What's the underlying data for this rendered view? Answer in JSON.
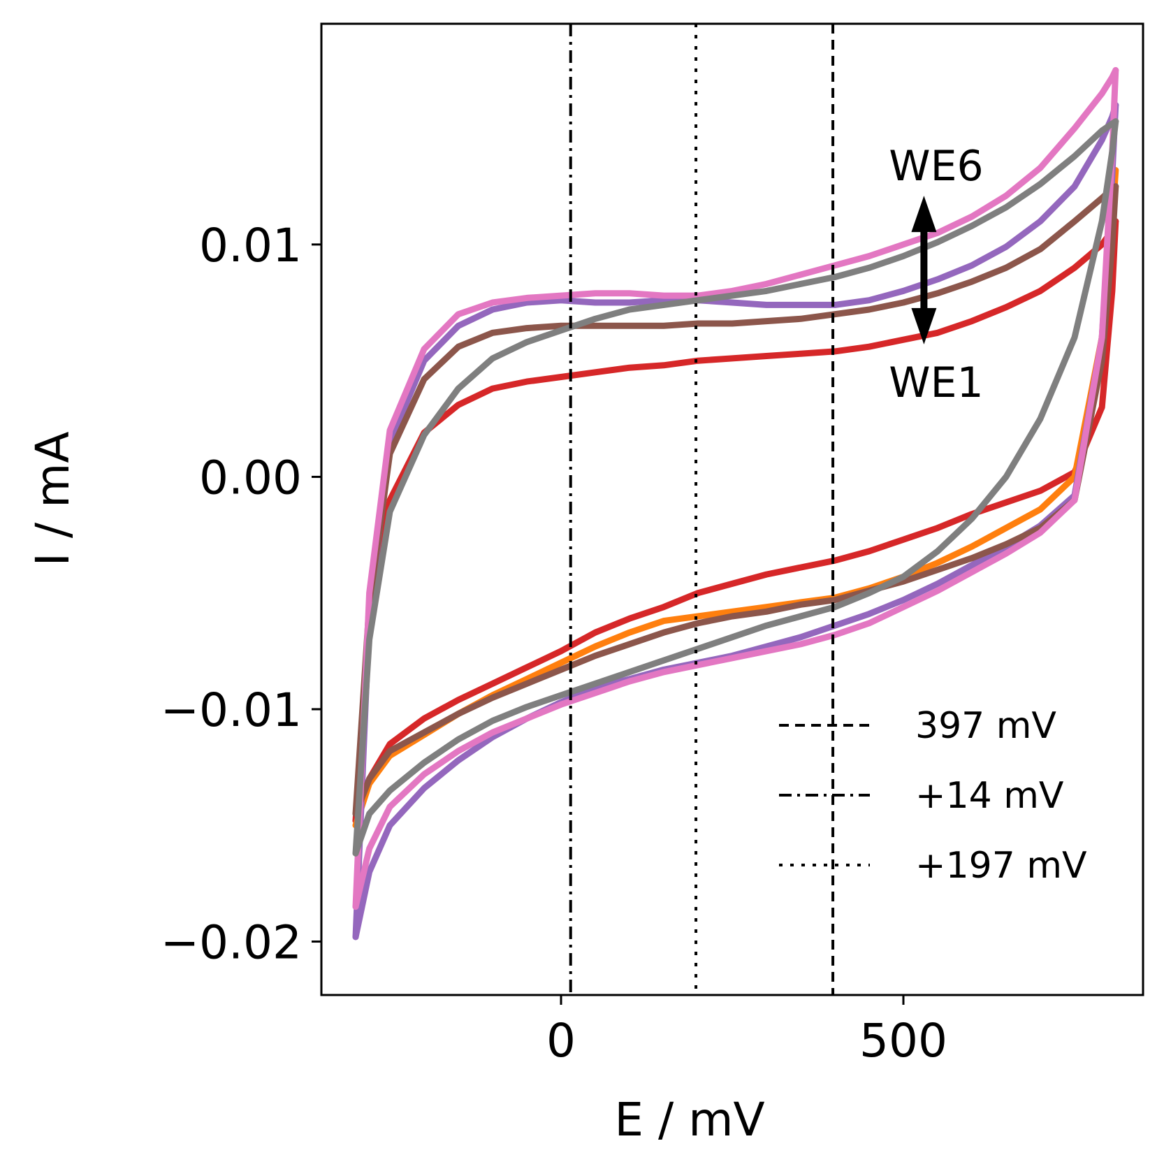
{
  "chart_data": {
    "type": "line",
    "title": "",
    "xlabel": "E / mV",
    "ylabel": "I / mA",
    "xlim": [
      -350,
      850
    ],
    "ylim": [
      -0.0223,
      0.0195
    ],
    "x_ticks": [
      0,
      500
    ],
    "x_tick_labels": [
      "0",
      "500"
    ],
    "y_ticks": [
      -0.02,
      -0.01,
      0.0,
      0.01
    ],
    "y_tick_labels": [
      "−0.02",
      "−0.01",
      "0.00",
      "0.01"
    ],
    "grid": false,
    "legend_position": "lower-right",
    "reference_lines": [
      {
        "x": 397,
        "style": "dashed",
        "label": "397 mV"
      },
      {
        "x": 14,
        "style": "dashdot",
        "label": "+14 mV"
      },
      {
        "x": 197,
        "style": "dotted",
        "label": "+197 mV"
      }
    ],
    "annotations": {
      "top": "WE6",
      "bottom": "WE1",
      "arrow_x": 530,
      "arrow_y": [
        0.0057,
        0.0121
      ]
    },
    "x": [
      -300,
      -280,
      -250,
      -200,
      -150,
      -100,
      -50,
      0,
      50,
      100,
      150,
      200,
      250,
      300,
      350,
      400,
      450,
      500,
      550,
      600,
      650,
      700,
      750,
      790,
      805,
      810
    ],
    "series": [
      {
        "color": "#d62728",
        "forward": [
          -0.0148,
          -0.013,
          -0.0115,
          -0.0104,
          -0.0096,
          -0.0089,
          -0.0082,
          -0.0075,
          -0.0067,
          -0.0061,
          -0.0056,
          -0.005,
          -0.0046,
          -0.0042,
          -0.0039,
          -0.0036,
          -0.0032,
          -0.0027,
          -0.0022,
          -0.0016,
          -0.0011,
          -0.0006,
          0.0002,
          0.003,
          0.008,
          0.011
        ],
        "reverse": [
          -0.0148,
          -0.006,
          -0.001,
          0.0019,
          0.0031,
          0.0038,
          0.0041,
          0.0043,
          0.0045,
          0.0047,
          0.0048,
          0.005,
          0.0051,
          0.0052,
          0.0053,
          0.0054,
          0.0056,
          0.0059,
          0.0062,
          0.0067,
          0.0073,
          0.008,
          0.009,
          0.01,
          0.0106,
          0.011
        ]
      },
      {
        "color": "#ff7f0e",
        "forward": [
          -0.015,
          -0.0132,
          -0.012,
          -0.0111,
          -0.0102,
          -0.0094,
          -0.0087,
          -0.008,
          -0.0073,
          -0.0067,
          -0.0062,
          -0.006,
          -0.0058,
          -0.0056,
          -0.0054,
          -0.0052,
          -0.0048,
          -0.0043,
          -0.0037,
          -0.003,
          -0.0022,
          -0.0014,
          0.0,
          0.006,
          0.011,
          0.0132
        ]
      },
      {
        "color": "#9467bd",
        "forward": [
          -0.0198,
          -0.017,
          -0.015,
          -0.0134,
          -0.0122,
          -0.0112,
          -0.0104,
          -0.0097,
          -0.0091,
          -0.0087,
          -0.0083,
          -0.008,
          -0.0077,
          -0.0073,
          -0.0069,
          -0.0064,
          -0.0059,
          -0.0053,
          -0.0046,
          -0.0038,
          -0.003,
          -0.0021,
          -0.0008,
          0.006,
          0.013,
          0.016
        ],
        "reverse": [
          -0.0198,
          -0.006,
          0.0015,
          0.005,
          0.0065,
          0.0072,
          0.0075,
          0.0076,
          0.0075,
          0.0075,
          0.0076,
          0.0076,
          0.0075,
          0.0074,
          0.0074,
          0.0074,
          0.0076,
          0.008,
          0.0085,
          0.0091,
          0.0099,
          0.011,
          0.0125,
          0.0145,
          0.0155,
          0.016
        ]
      },
      {
        "color": "#8c564b",
        "forward": [
          -0.0145,
          -0.013,
          -0.0118,
          -0.011,
          -0.0102,
          -0.0095,
          -0.0089,
          -0.0083,
          -0.0077,
          -0.0072,
          -0.0067,
          -0.0063,
          -0.006,
          -0.0058,
          -0.0055,
          -0.0053,
          -0.0049,
          -0.0045,
          -0.004,
          -0.0035,
          -0.0029,
          -0.0022,
          -0.001,
          0.005,
          0.01,
          0.0125
        ],
        "reverse": [
          -0.0145,
          -0.0055,
          0.001,
          0.0042,
          0.0056,
          0.0062,
          0.0064,
          0.0065,
          0.0065,
          0.0065,
          0.0065,
          0.0066,
          0.0066,
          0.0067,
          0.0068,
          0.007,
          0.0072,
          0.0075,
          0.0079,
          0.0084,
          0.009,
          0.0098,
          0.011,
          0.012,
          0.0124,
          0.0125
        ]
      },
      {
        "color": "#e377c2",
        "forward": [
          -0.0185,
          -0.016,
          -0.0142,
          -0.0128,
          -0.0118,
          -0.011,
          -0.0104,
          -0.0098,
          -0.0093,
          -0.0088,
          -0.0084,
          -0.0081,
          -0.0078,
          -0.0075,
          -0.0072,
          -0.0068,
          -0.0063,
          -0.0056,
          -0.0049,
          -0.0041,
          -0.0033,
          -0.0024,
          -0.001,
          0.006,
          0.014,
          0.0175
        ],
        "reverse": [
          -0.0185,
          -0.005,
          0.002,
          0.0055,
          0.007,
          0.0075,
          0.0077,
          0.0078,
          0.0079,
          0.0079,
          0.0078,
          0.0078,
          0.008,
          0.0083,
          0.0087,
          0.0091,
          0.0095,
          0.01,
          0.0105,
          0.0112,
          0.0121,
          0.0133,
          0.015,
          0.0165,
          0.0172,
          0.0175
        ]
      },
      {
        "color": "#7f7f7f",
        "forward": [
          -0.0162,
          -0.0145,
          -0.0135,
          -0.0123,
          -0.0113,
          -0.0105,
          -0.0099,
          -0.0094,
          -0.0089,
          -0.0084,
          -0.0079,
          -0.0074,
          -0.0069,
          -0.0064,
          -0.006,
          -0.0056,
          -0.005,
          -0.0043,
          -0.0032,
          -0.0018,
          0.0,
          0.0025,
          0.006,
          0.011,
          0.014,
          0.0153
        ],
        "reverse": [
          -0.0162,
          -0.007,
          -0.0015,
          0.0018,
          0.0038,
          0.0051,
          0.0058,
          0.0063,
          0.0068,
          0.0072,
          0.0074,
          0.0076,
          0.0078,
          0.008,
          0.0083,
          0.0086,
          0.009,
          0.0095,
          0.0101,
          0.0108,
          0.0116,
          0.0126,
          0.0138,
          0.0149,
          0.0152,
          0.0153
        ]
      }
    ]
  }
}
